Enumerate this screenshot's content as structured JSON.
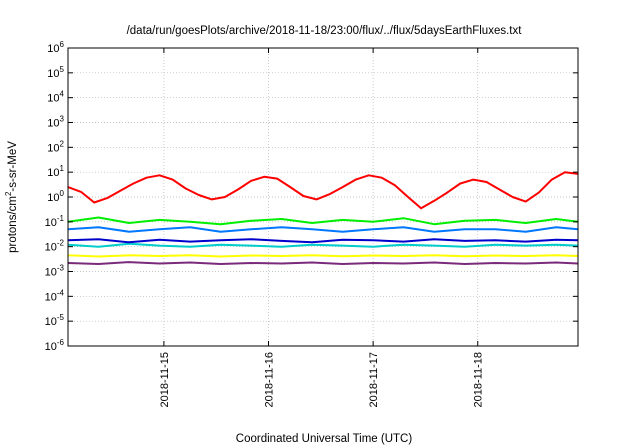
{
  "chart_data": {
    "type": "line",
    "title": "/data/run/goesPlots/archive/2018-11-18/23:00/flux/../flux/5daysEarthFluxes.txt",
    "xlabel": "Coordinated Universal Time (UTC)",
    "ylabel": {
      "base": "protons/cm",
      "sup": "2",
      "rest": "-s-sr-MeV"
    },
    "yscale": "log",
    "ylim": [
      1e-06,
      1000000.0
    ],
    "grid": true,
    "y_ticks": [
      {
        "base": "10",
        "exp": "-6"
      },
      {
        "base": "10",
        "exp": "-5"
      },
      {
        "base": "10",
        "exp": "-4"
      },
      {
        "base": "10",
        "exp": "-3"
      },
      {
        "base": "10",
        "exp": "-2"
      },
      {
        "base": "10",
        "exp": "-1"
      },
      {
        "base": "10",
        "exp": "0"
      },
      {
        "base": "10",
        "exp": "1"
      },
      {
        "base": "10",
        "exp": "2"
      },
      {
        "base": "10",
        "exp": "3"
      },
      {
        "base": "10",
        "exp": "4"
      },
      {
        "base": "10",
        "exp": "5"
      },
      {
        "base": "10",
        "exp": "6"
      }
    ],
    "x_start": "2018-11-14 02:00",
    "x_end": "2018-11-18 23:00",
    "x_ticks": [
      "2018-11-15",
      "2018-11-16",
      "2018-11-17",
      "2018-11-18"
    ],
    "series": [
      {
        "color": "#ff0000",
        "x": [
          "2018-11-14 02:00",
          "2018-11-14 05:00",
          "2018-11-14 08:00",
          "2018-11-14 11:00",
          "2018-11-14 14:00",
          "2018-11-14 17:00",
          "2018-11-14 20:00",
          "2018-11-14 23:00",
          "2018-11-15 02:00",
          "2018-11-15 05:00",
          "2018-11-15 08:00",
          "2018-11-15 11:00",
          "2018-11-15 14:00",
          "2018-11-15 17:00",
          "2018-11-15 20:00",
          "2018-11-15 23:00",
          "2018-11-16 02:00",
          "2018-11-16 05:00",
          "2018-11-16 08:00",
          "2018-11-16 11:00",
          "2018-11-16 14:00",
          "2018-11-16 17:00",
          "2018-11-16 20:00",
          "2018-11-16 23:00",
          "2018-11-17 02:00",
          "2018-11-17 05:00",
          "2018-11-17 08:00",
          "2018-11-17 11:00",
          "2018-11-17 14:00",
          "2018-11-17 17:00",
          "2018-11-17 20:00",
          "2018-11-17 23:00",
          "2018-11-18 02:00",
          "2018-11-18 05:00",
          "2018-11-18 08:00",
          "2018-11-18 11:00",
          "2018-11-18 14:00",
          "2018-11-18 17:00",
          "2018-11-18 20:00",
          "2018-11-18 23:00"
        ],
        "values": [
          2.5,
          1.6,
          0.6,
          0.9,
          1.8,
          3.5,
          6.0,
          7.5,
          5.0,
          2.2,
          1.2,
          0.8,
          1.0,
          2.0,
          4.5,
          6.5,
          5.5,
          2.5,
          1.1,
          0.8,
          1.3,
          2.5,
          5.0,
          7.5,
          6.0,
          3.0,
          1.0,
          0.35,
          0.7,
          1.5,
          3.5,
          5.0,
          4.0,
          2.0,
          1.0,
          0.65,
          1.5,
          5.0,
          10.0,
          8.5
        ]
      },
      {
        "color": "#00ee00",
        "x": [
          "2018-11-14 02:00",
          "2018-11-14 09:00",
          "2018-11-14 16:00",
          "2018-11-14 23:00",
          "2018-11-15 06:00",
          "2018-11-15 13:00",
          "2018-11-15 20:00",
          "2018-11-16 03:00",
          "2018-11-16 10:00",
          "2018-11-16 17:00",
          "2018-11-17 00:00",
          "2018-11-17 07:00",
          "2018-11-17 14:00",
          "2018-11-17 21:00",
          "2018-11-18 04:00",
          "2018-11-18 11:00",
          "2018-11-18 18:00",
          "2018-11-18 23:00"
        ],
        "values": [
          0.1,
          0.15,
          0.09,
          0.12,
          0.1,
          0.08,
          0.11,
          0.13,
          0.09,
          0.12,
          0.1,
          0.14,
          0.08,
          0.11,
          0.12,
          0.09,
          0.13,
          0.1
        ]
      },
      {
        "color": "#0077ff",
        "x": [
          "2018-11-14 02:00",
          "2018-11-14 09:00",
          "2018-11-14 16:00",
          "2018-11-14 23:00",
          "2018-11-15 06:00",
          "2018-11-15 13:00",
          "2018-11-15 20:00",
          "2018-11-16 03:00",
          "2018-11-16 10:00",
          "2018-11-16 17:00",
          "2018-11-17 00:00",
          "2018-11-17 07:00",
          "2018-11-17 14:00",
          "2018-11-17 21:00",
          "2018-11-18 04:00",
          "2018-11-18 11:00",
          "2018-11-18 18:00",
          "2018-11-18 23:00"
        ],
        "values": [
          0.05,
          0.06,
          0.04,
          0.05,
          0.06,
          0.04,
          0.05,
          0.06,
          0.05,
          0.04,
          0.05,
          0.06,
          0.04,
          0.05,
          0.05,
          0.04,
          0.06,
          0.05
        ]
      },
      {
        "color": "#00cccc",
        "x": [
          "2018-11-14 02:00",
          "2018-11-14 09:00",
          "2018-11-14 16:00",
          "2018-11-14 23:00",
          "2018-11-15 06:00",
          "2018-11-15 13:00",
          "2018-11-15 20:00",
          "2018-11-16 03:00",
          "2018-11-16 10:00",
          "2018-11-16 17:00",
          "2018-11-17 00:00",
          "2018-11-17 07:00",
          "2018-11-17 14:00",
          "2018-11-17 21:00",
          "2018-11-18 04:00",
          "2018-11-18 11:00",
          "2018-11-18 18:00",
          "2018-11-18 23:00"
        ],
        "values": [
          0.012,
          0.01,
          0.013,
          0.011,
          0.01,
          0.012,
          0.011,
          0.01,
          0.012,
          0.011,
          0.01,
          0.012,
          0.011,
          0.01,
          0.012,
          0.011,
          0.012,
          0.011
        ]
      },
      {
        "color": "#0000cc",
        "x": [
          "2018-11-14 02:00",
          "2018-11-14 09:00",
          "2018-11-14 16:00",
          "2018-11-14 23:00",
          "2018-11-15 06:00",
          "2018-11-15 13:00",
          "2018-11-15 20:00",
          "2018-11-16 03:00",
          "2018-11-16 10:00",
          "2018-11-16 17:00",
          "2018-11-17 00:00",
          "2018-11-17 07:00",
          "2018-11-17 14:00",
          "2018-11-17 21:00",
          "2018-11-18 04:00",
          "2018-11-18 11:00",
          "2018-11-18 18:00",
          "2018-11-18 23:00"
        ],
        "values": [
          0.018,
          0.02,
          0.015,
          0.019,
          0.016,
          0.018,
          0.02,
          0.017,
          0.015,
          0.019,
          0.018,
          0.016,
          0.02,
          0.017,
          0.018,
          0.016,
          0.019,
          0.018
        ]
      },
      {
        "color": "#ffff00",
        "x": [
          "2018-11-14 02:00",
          "2018-11-14 09:00",
          "2018-11-14 16:00",
          "2018-11-14 23:00",
          "2018-11-15 06:00",
          "2018-11-15 13:00",
          "2018-11-15 20:00",
          "2018-11-16 03:00",
          "2018-11-16 10:00",
          "2018-11-16 17:00",
          "2018-11-17 00:00",
          "2018-11-17 07:00",
          "2018-11-17 14:00",
          "2018-11-17 21:00",
          "2018-11-18 04:00",
          "2018-11-18 11:00",
          "2018-11-18 18:00",
          "2018-11-18 23:00"
        ],
        "values": [
          0.0045,
          0.004,
          0.0045,
          0.0042,
          0.0045,
          0.004,
          0.0044,
          0.0042,
          0.0045,
          0.0041,
          0.0044,
          0.0042,
          0.0045,
          0.0041,
          0.0044,
          0.0042,
          0.0045,
          0.0042
        ]
      },
      {
        "color": "#7a2a7a",
        "x": [
          "2018-11-14 02:00",
          "2018-11-14 09:00",
          "2018-11-14 16:00",
          "2018-11-14 23:00",
          "2018-11-15 06:00",
          "2018-11-15 13:00",
          "2018-11-15 20:00",
          "2018-11-16 03:00",
          "2018-11-16 10:00",
          "2018-11-16 17:00",
          "2018-11-17 00:00",
          "2018-11-17 07:00",
          "2018-11-17 14:00",
          "2018-11-17 21:00",
          "2018-11-18 04:00",
          "2018-11-18 11:00",
          "2018-11-18 18:00",
          "2018-11-18 23:00"
        ],
        "values": [
          0.0022,
          0.002,
          0.0024,
          0.0021,
          0.0023,
          0.002,
          0.0022,
          0.0021,
          0.0023,
          0.002,
          0.0022,
          0.0021,
          0.0023,
          0.002,
          0.0022,
          0.0021,
          0.0023,
          0.0021
        ]
      }
    ]
  }
}
